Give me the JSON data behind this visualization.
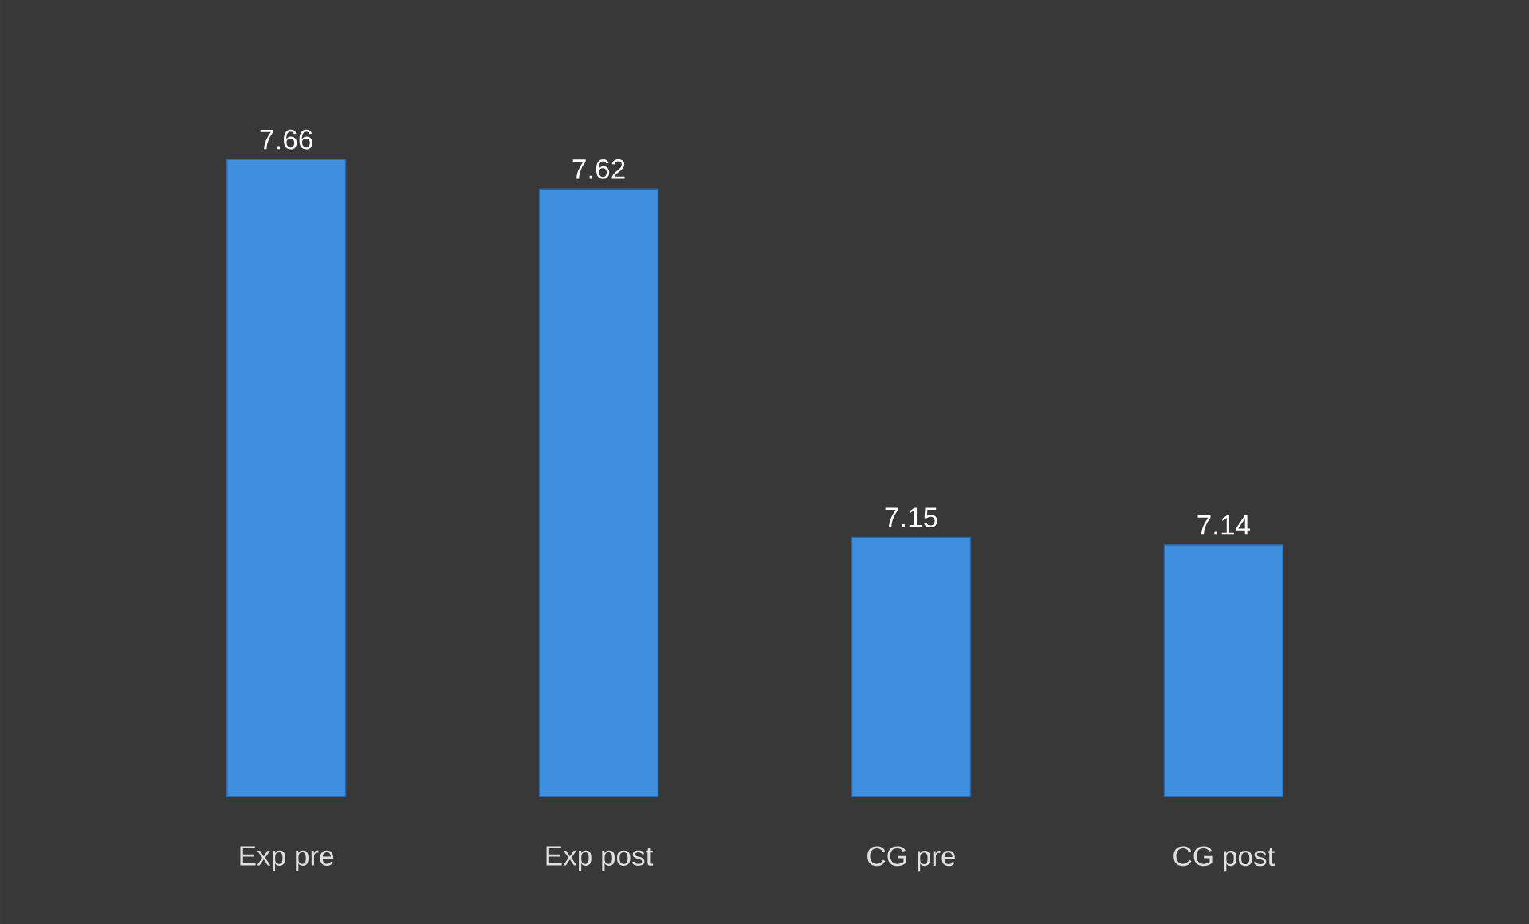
{
  "chart_data": {
    "type": "bar",
    "categories": [
      "Exp pre",
      "Exp post",
      "CG pre",
      "CG post"
    ],
    "values": [
      7.66,
      7.62,
      7.15,
      7.14
    ],
    "color": "#3f8fe0",
    "ylim": [
      6.8,
      7.66
    ],
    "data_labels": true
  }
}
